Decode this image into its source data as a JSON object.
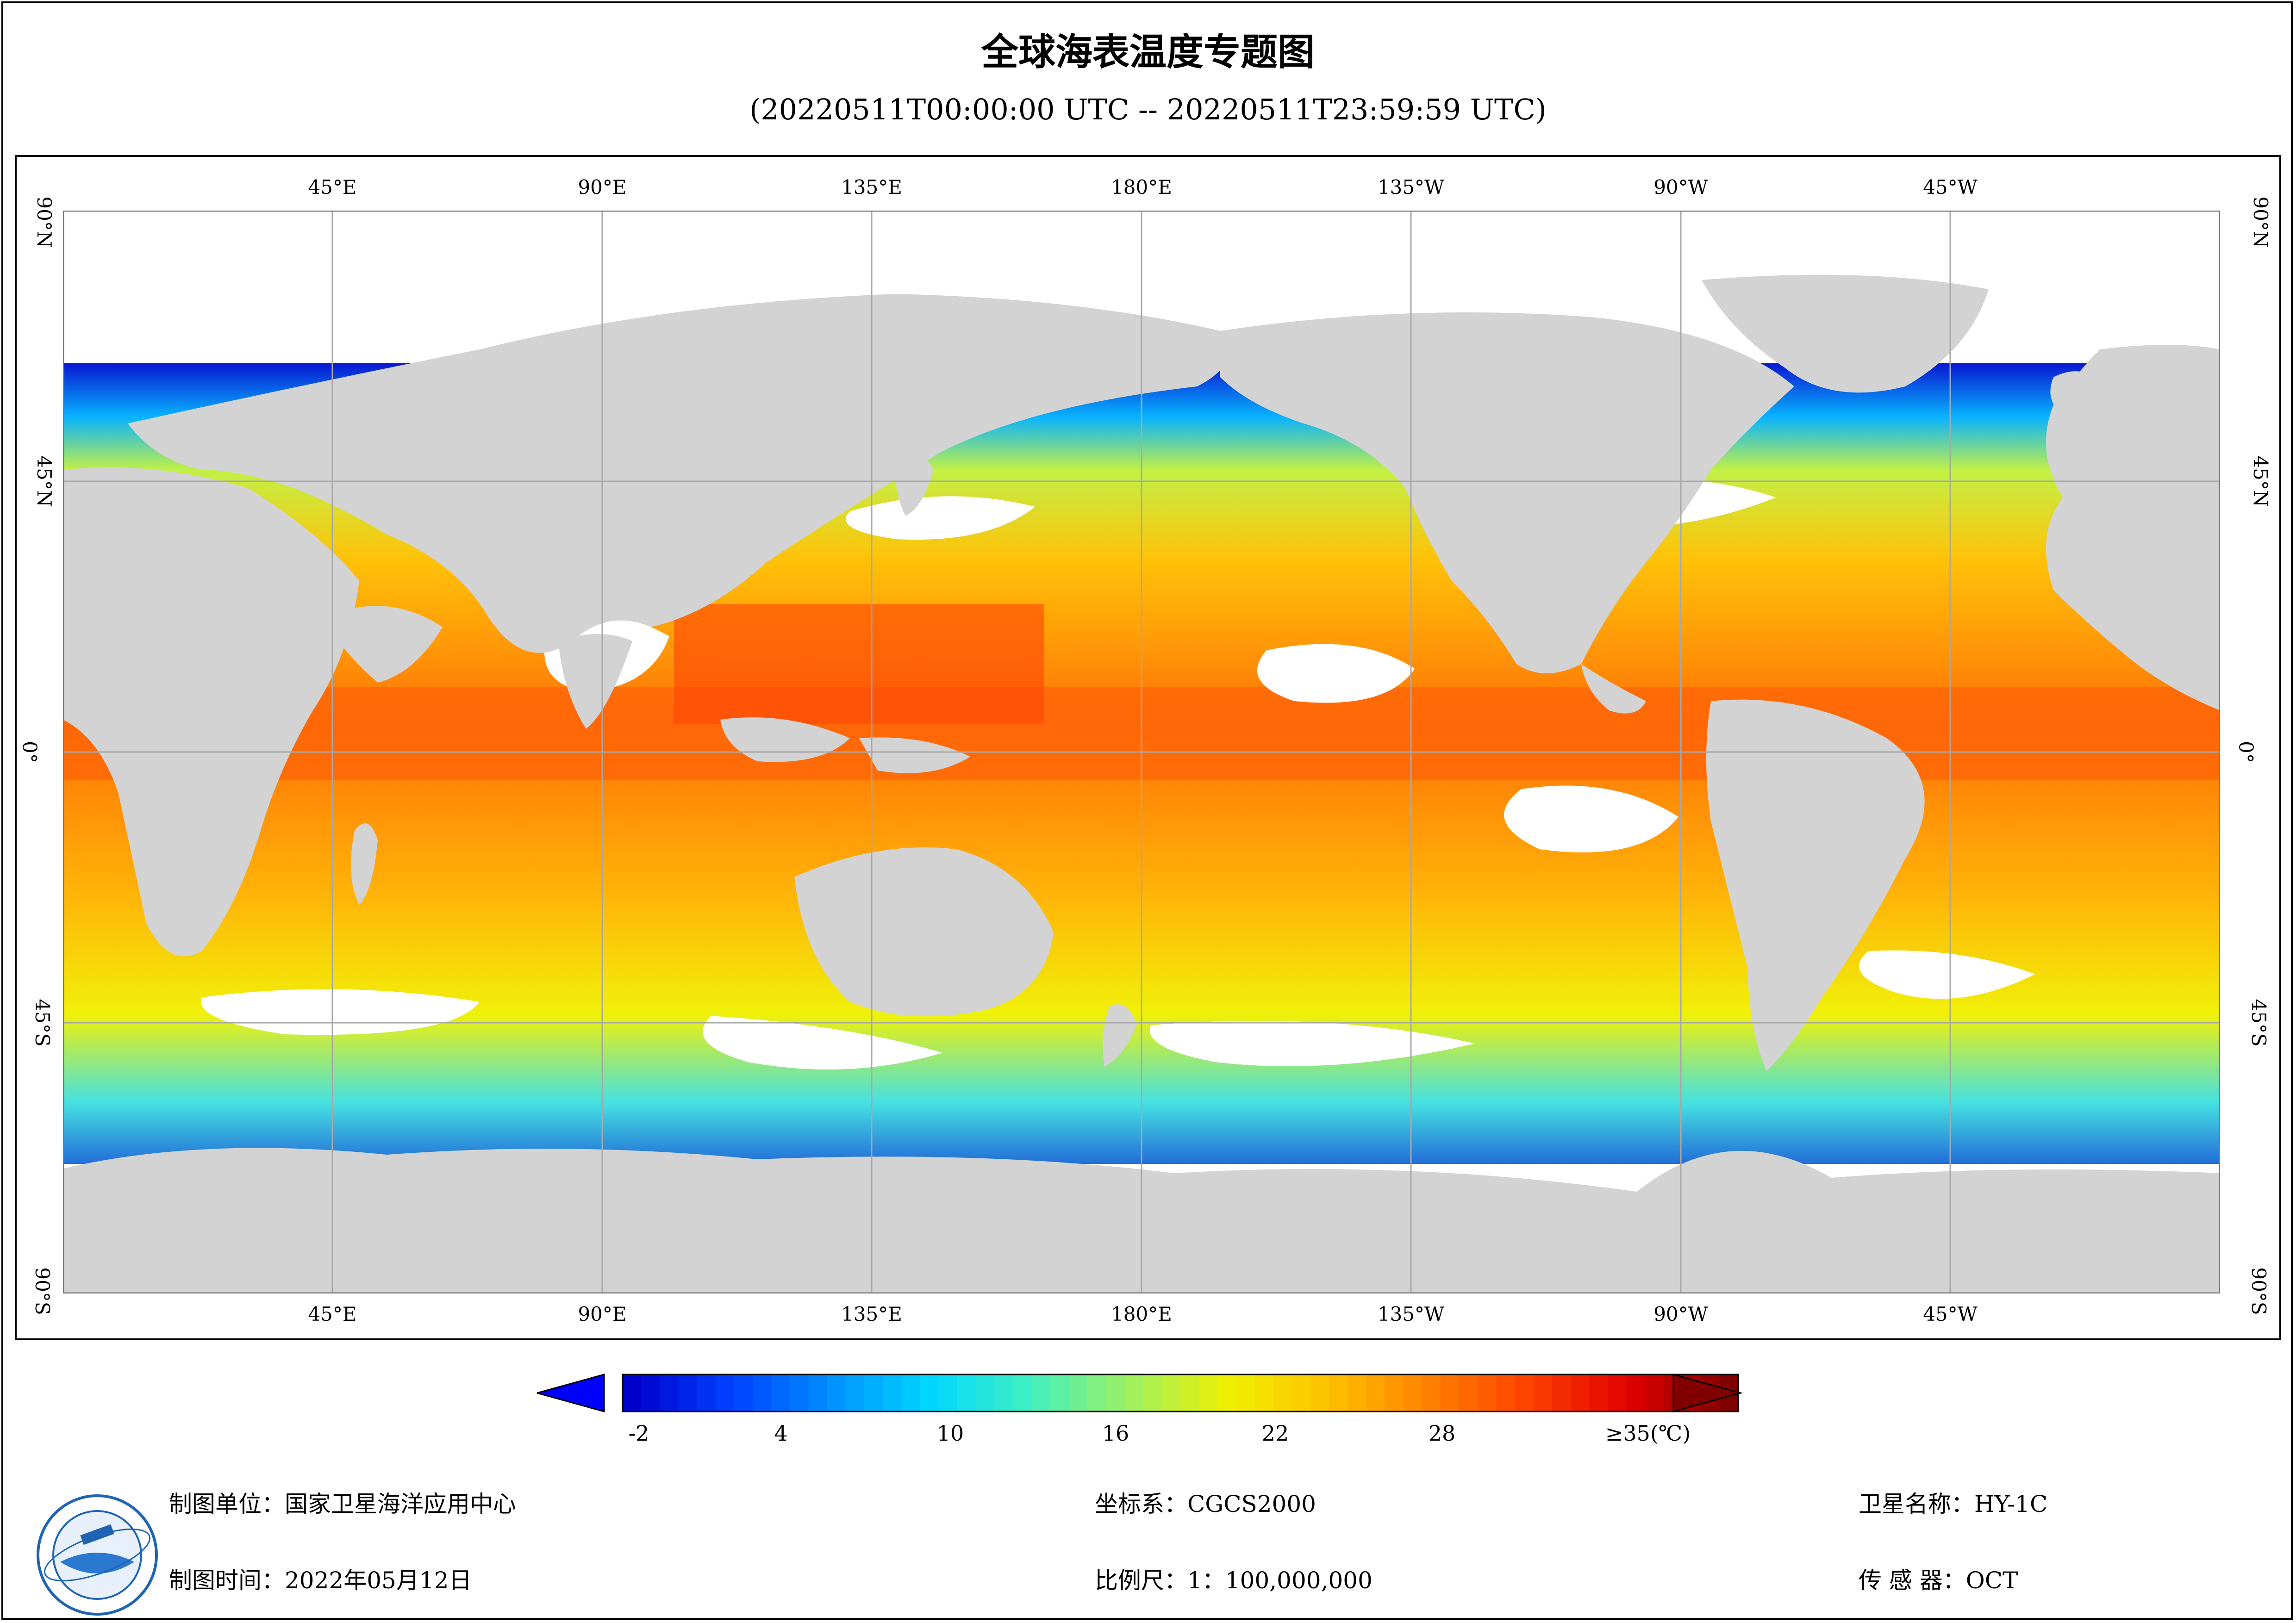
{
  "title": "全球海表温度专题图",
  "subtitle": "(20220511T00:00:00 UTC -- 20220511T23:59:59 UTC)",
  "map": {
    "top_lon_labels": [
      "45°E",
      "90°E",
      "135°E",
      "180°E",
      "135°W",
      "90°W",
      "45°W"
    ],
    "bottom_lon_labels": [
      "45°E",
      "90°E",
      "135°E",
      "180°E",
      "135°W",
      "90°W",
      "45°W"
    ],
    "lat_labels": [
      "90°N",
      "45°N",
      "0°",
      "45°S",
      "90°S"
    ],
    "colors": {
      "land": "#d3d3d3",
      "no_data": "#ffffff",
      "grid": "#a8a8a8"
    },
    "projection": "equirectangular, centered 180°"
  },
  "legend": {
    "ticks": [
      "-2",
      "4",
      "10",
      "16",
      "22",
      "28",
      "≥35(℃)"
    ],
    "min": -2,
    "max": 35,
    "colors": [
      "#0000cc",
      "#0040ff",
      "#0090ff",
      "#00d8ff",
      "#40f0c0",
      "#a0f060",
      "#f0f000",
      "#ffc000",
      "#ff8000",
      "#ff4000",
      "#e00000",
      "#800000"
    ],
    "arrow_low_color": "#0000ff",
    "arrow_high_color": "#800000"
  },
  "footer": {
    "org": "制图单位：国家卫星海洋应用中心",
    "date": "制图时间：2022年05月12日",
    "coord": "坐标系：CGCS2000",
    "scale": "比例尺：1：100,000,000",
    "satellite": "卫星名称：HY-1C",
    "sensor": "传  感  器：OCT"
  }
}
